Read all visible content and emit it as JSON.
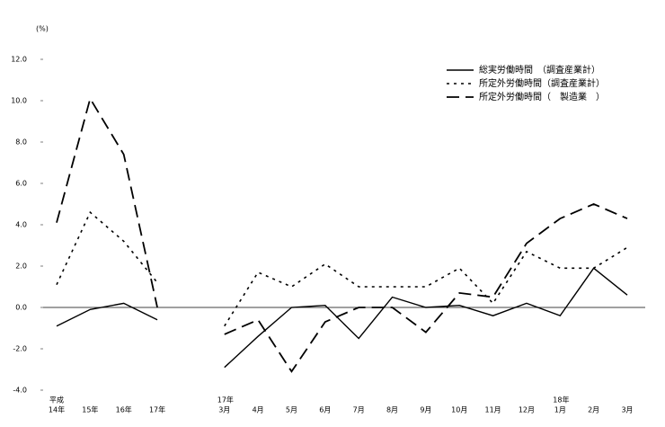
{
  "chart_data": {
    "type": "line",
    "unit_label": "(%)",
    "category_top": [
      "平成",
      null,
      null,
      null,
      null,
      "17年",
      null,
      null,
      null,
      null,
      null,
      null,
      null,
      null,
      null,
      "18年",
      null,
      null
    ],
    "categories": [
      "14年",
      "15年",
      "16年",
      "17年",
      null,
      "3月",
      "4月",
      "5月",
      "6月",
      "7月",
      "8月",
      "9月",
      "10月",
      "11月",
      "12月",
      "1月",
      "2月",
      "3月"
    ],
    "series": [
      {
        "name": "総実労働時間　（調査産業計）",
        "color": "#000000",
        "dash": "solid",
        "values": [
          -0.9,
          -0.1,
          0.2,
          -0.6,
          null,
          -2.9,
          -1.4,
          0.0,
          0.1,
          -1.5,
          0.5,
          0.0,
          0.1,
          -0.4,
          0.2,
          -0.4,
          1.9,
          0.6
        ]
      },
      {
        "name": "所定外労働時間（調査産業計）",
        "color": "#000000",
        "dash": "dotted",
        "values": [
          1.1,
          4.6,
          3.2,
          1.2,
          null,
          -0.9,
          1.7,
          1.0,
          2.1,
          1.0,
          1.0,
          1.0,
          1.9,
          0.2,
          2.7,
          1.9,
          1.9,
          2.9
        ]
      },
      {
        "name": "所定外労働時間（　製造業　）",
        "color": "#000000",
        "dash": "dashed",
        "values": [
          4.1,
          10.1,
          7.4,
          0.0,
          null,
          -1.3,
          -0.6,
          -3.1,
          -0.7,
          0.0,
          0.0,
          -1.2,
          0.7,
          0.5,
          3.1,
          4.3,
          5.0,
          4.3
        ]
      }
    ],
    "ylim": [
      -4,
      12
    ],
    "yticks": [
      {
        "value": -4,
        "label": "-4.0"
      },
      {
        "value": -2,
        "label": "-2.0"
      },
      {
        "value": 0,
        "label": "0.0"
      },
      {
        "value": 2,
        "label": "2.0"
      },
      {
        "value": 4,
        "label": "4.0"
      },
      {
        "value": 6,
        "label": "6.0"
      },
      {
        "value": 8,
        "label": "8.0"
      },
      {
        "value": 10,
        "label": "10.0"
      },
      {
        "value": 12,
        "label": "12.0"
      }
    ],
    "legend": "top-right"
  }
}
